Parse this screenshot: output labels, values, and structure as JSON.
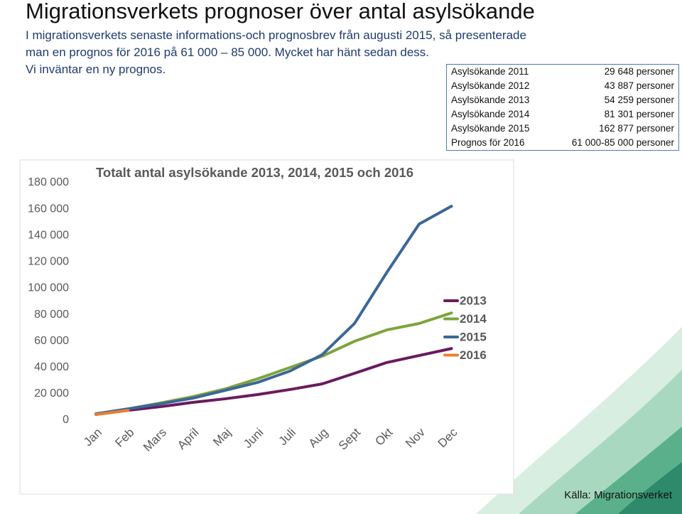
{
  "header": {
    "title": "Migrationsverkets prognoser över antal asylsökande",
    "lines": [
      "I migrationsverkets senaste informations-och prognosbrev från augusti 2015, så presenterade",
      "man en prognos för 2016 på 61 000 – 85 000. Mycket har hänt sedan dess.",
      "Vi inväntar en ny prognos."
    ]
  },
  "table": {
    "rows": [
      [
        "Asylsökande 2011",
        "29 648 personer"
      ],
      [
        "Asylsökande 2012",
        "43 887 personer"
      ],
      [
        "Asylsökande 2013",
        "54 259 personer"
      ],
      [
        "Asylsökande 2014",
        "81 301 personer"
      ],
      [
        "Asylsökande 2015",
        "162 877 personer"
      ],
      [
        "Prognos för 2016",
        "61 000-85 000 personer"
      ]
    ]
  },
  "source": "Källa: Migrationsverket",
  "chart_data": {
    "type": "line",
    "title": "Totalt antal asylsökande 2013, 2014, 2015 och 2016",
    "categories": [
      "Jan",
      "Feb",
      "Mars",
      "April",
      "Maj",
      "Juni",
      "Juli",
      "Aug",
      "Sept",
      "Okt",
      "Nov",
      "Dec"
    ],
    "series": [
      {
        "name": "2013",
        "color": "#6a1b5c",
        "values": [
          4300,
          7500,
          10200,
          13500,
          16200,
          19400,
          23200,
          27500,
          35500,
          43700,
          49000,
          54300
        ]
      },
      {
        "name": "2014",
        "color": "#7ba53c",
        "values": [
          4800,
          8600,
          13000,
          17800,
          23700,
          31300,
          39900,
          48500,
          59800,
          68400,
          73300,
          81300
        ]
      },
      {
        "name": "2015",
        "color": "#3c6699",
        "values": [
          4800,
          8600,
          12400,
          16700,
          22600,
          28600,
          37200,
          49600,
          73300,
          112000,
          148700,
          162200
        ]
      },
      {
        "name": "2016",
        "color": "#e8802e",
        "values": [
          4300,
          7500,
          null,
          null,
          null,
          null,
          null,
          null,
          null,
          null,
          null,
          null
        ]
      }
    ],
    "ylim": [
      0,
      180000
    ],
    "yticks": [
      0,
      {
        "value": 20000,
        "label": "20 000"
      },
      {
        "value": 40000,
        "label": "40 000"
      },
      {
        "value": 60000,
        "label": "60 000"
      },
      {
        "value": 80000,
        "label": "80 000"
      },
      {
        "value": 100000,
        "label": "100 000"
      },
      {
        "value": 120000,
        "label": "120 000"
      },
      {
        "value": 140000,
        "label": "140 000"
      },
      {
        "value": 160000,
        "label": "160 000"
      },
      {
        "value": 180000,
        "label": "180 000"
      }
    ],
    "grid": false,
    "legend": "right"
  }
}
